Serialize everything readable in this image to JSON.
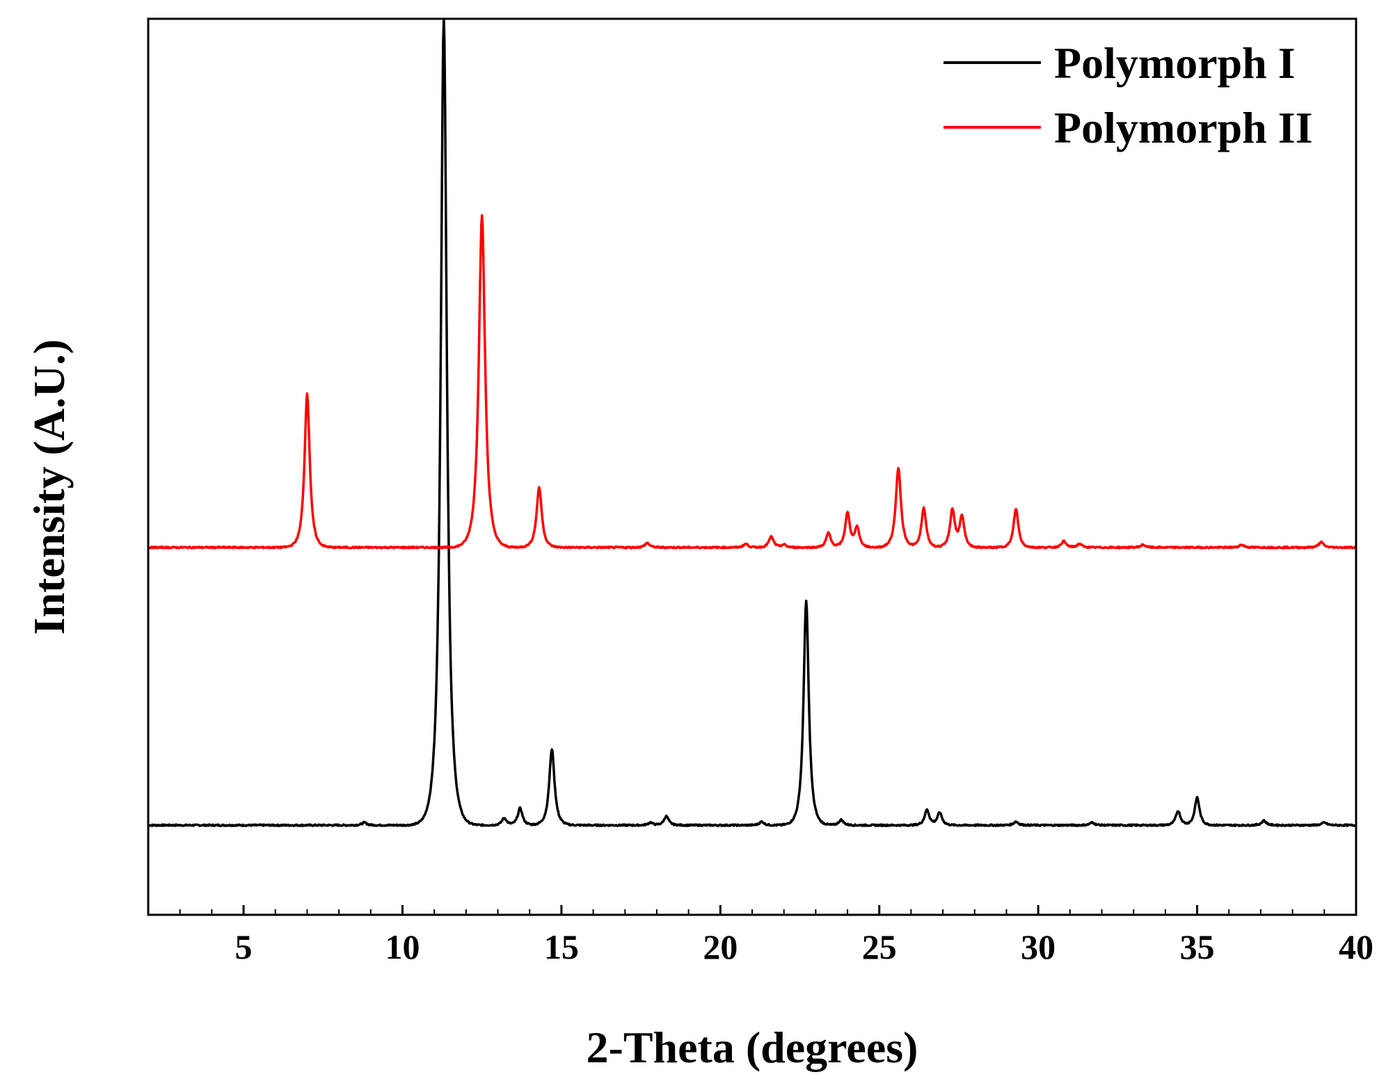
{
  "chart_data": {
    "type": "line",
    "title": "",
    "xlabel": "2-Theta (degrees)",
    "ylabel": "Intensity (A.U.)",
    "xlim": [
      2,
      40
    ],
    "ylim": [
      0,
      1000
    ],
    "x_ticks": [
      "5",
      "10",
      "15",
      "20",
      "25",
      "30",
      "35",
      "40"
    ],
    "y_ticks_shown": false,
    "grid": false,
    "legend_position": "top-right",
    "series": [
      {
        "name": "Polymorph I",
        "color": "#000000",
        "baseline": 100,
        "peaks": [
          {
            "x": 8.8,
            "y": 103
          },
          {
            "x": 11.3,
            "y": 1000
          },
          {
            "x": 13.2,
            "y": 108
          },
          {
            "x": 13.7,
            "y": 119
          },
          {
            "x": 14.7,
            "y": 185
          },
          {
            "x": 17.8,
            "y": 103
          },
          {
            "x": 18.3,
            "y": 110
          },
          {
            "x": 21.3,
            "y": 104
          },
          {
            "x": 22.7,
            "y": 350
          },
          {
            "x": 23.8,
            "y": 106
          },
          {
            "x": 26.5,
            "y": 117
          },
          {
            "x": 26.9,
            "y": 114
          },
          {
            "x": 29.3,
            "y": 104
          },
          {
            "x": 31.7,
            "y": 103
          },
          {
            "x": 34.4,
            "y": 116
          },
          {
            "x": 35.0,
            "y": 131
          },
          {
            "x": 37.1,
            "y": 105
          },
          {
            "x": 39.0,
            "y": 103
          }
        ]
      },
      {
        "name": "Polymorph II",
        "color": "#ff0000",
        "baseline": 410,
        "peaks": [
          {
            "x": 7.0,
            "y": 581
          },
          {
            "x": 12.5,
            "y": 780
          },
          {
            "x": 14.3,
            "y": 477
          },
          {
            "x": 17.7,
            "y": 415
          },
          {
            "x": 20.8,
            "y": 414
          },
          {
            "x": 21.6,
            "y": 422
          },
          {
            "x": 22.0,
            "y": 413
          },
          {
            "x": 23.4,
            "y": 426
          },
          {
            "x": 24.0,
            "y": 448
          },
          {
            "x": 24.3,
            "y": 432
          },
          {
            "x": 25.6,
            "y": 498
          },
          {
            "x": 26.4,
            "y": 454
          },
          {
            "x": 27.3,
            "y": 452
          },
          {
            "x": 27.6,
            "y": 444
          },
          {
            "x": 29.3,
            "y": 453
          },
          {
            "x": 30.8,
            "y": 417
          },
          {
            "x": 31.3,
            "y": 414
          },
          {
            "x": 33.3,
            "y": 413
          },
          {
            "x": 36.4,
            "y": 413
          },
          {
            "x": 38.9,
            "y": 416
          }
        ]
      }
    ]
  }
}
